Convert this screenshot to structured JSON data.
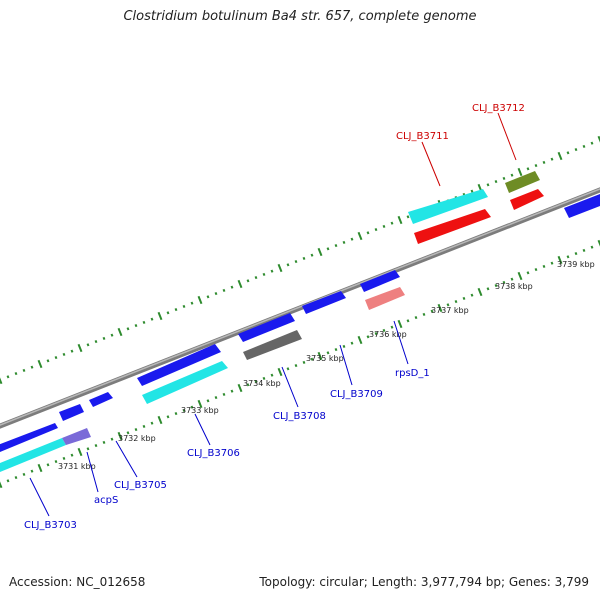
{
  "title": "Clostridium botulinum Ba4 str. 657, complete genome",
  "accession_text": "Accession: NC_012658",
  "genome_info_text": "Topology: circular; Length: 3,977,794 bp; Genes: 3,799",
  "colors": {
    "backbone": "#8a8a8a",
    "tick": "#2e8b2e",
    "blue": "#1a1aee",
    "cyan": "#22e5e5",
    "red": "#ee1111",
    "olive": "#6e8c25",
    "gray": "#666666",
    "pink": "#ee8080",
    "lavender": "#7a6ad8",
    "label_blue": "#0000cc",
    "label_red": "#cc0000"
  },
  "kbp_labels": [
    "3731 kbp",
    "3732 kbp",
    "3733 kbp",
    "3734 kbp",
    "3735 kbp",
    "3736 kbp",
    "3737 kbp",
    "3738 kbp",
    "3739 kbp"
  ],
  "gene_labels": [
    {
      "text": "CLJ_B3703",
      "color": "blue"
    },
    {
      "text": "acpS",
      "color": "blue"
    },
    {
      "text": "CLJ_B3705",
      "color": "blue"
    },
    {
      "text": "CLJ_B3706",
      "color": "blue"
    },
    {
      "text": "CLJ_B3708",
      "color": "blue"
    },
    {
      "text": "CLJ_B3709",
      "color": "blue"
    },
    {
      "text": "rpsD_1",
      "color": "blue"
    },
    {
      "text": "CLJ_B3711",
      "color": "red"
    },
    {
      "text": "CLJ_B3712",
      "color": "red"
    }
  ]
}
